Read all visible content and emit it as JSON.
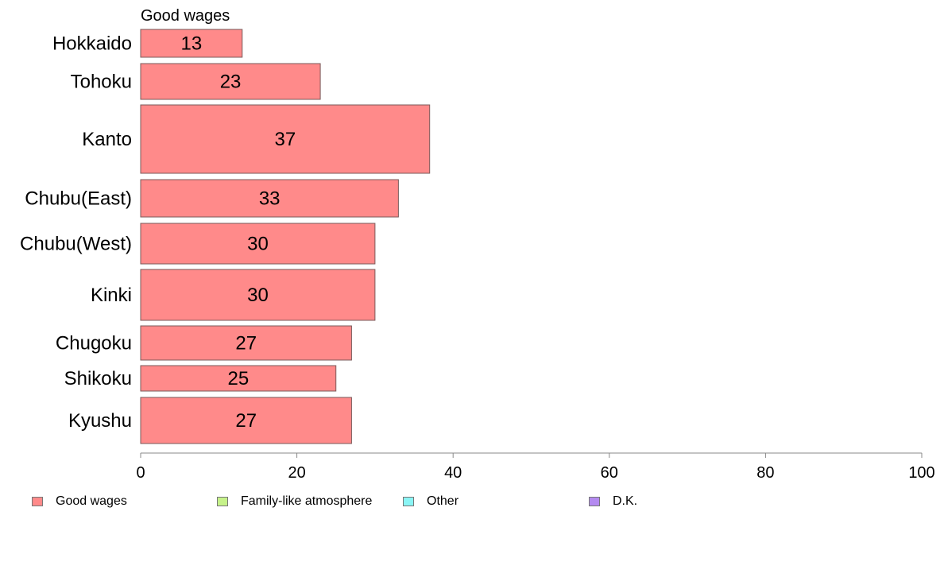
{
  "chart_data": {
    "type": "bar",
    "orientation": "horizontal",
    "panel_title": "Good wages",
    "categories": [
      "Hokkaido",
      "Tohoku",
      "Kanto",
      "Chubu(East)",
      "Chubu(West)",
      "Kinki",
      "Chugoku",
      "Shikoku",
      "Kyushu"
    ],
    "series": [
      {
        "name": "Good wages",
        "color": "#ff8a8a",
        "values": [
          13,
          23,
          37,
          33,
          30,
          30,
          27,
          25,
          27
        ],
        "labels": [
          "13",
          "23",
          "37",
          "33",
          "30",
          "30",
          "27",
          "25",
          "27"
        ]
      }
    ],
    "xlim": [
      0,
      100
    ],
    "xticks": [
      0,
      20,
      40,
      60,
      80,
      100
    ],
    "xtick_labels": [
      "0",
      "20",
      "40",
      "60",
      "80",
      "100"
    ],
    "grid": false,
    "legend_position": "bottom",
    "legend": [
      {
        "label": "Good wages",
        "color": "#ff8a8a"
      },
      {
        "label": "Family-like atmosphere",
        "color": "#c6f28a"
      },
      {
        "label": "Other",
        "color": "#8af5f5"
      },
      {
        "label": "D.K.",
        "color": "#b48af0"
      }
    ]
  }
}
